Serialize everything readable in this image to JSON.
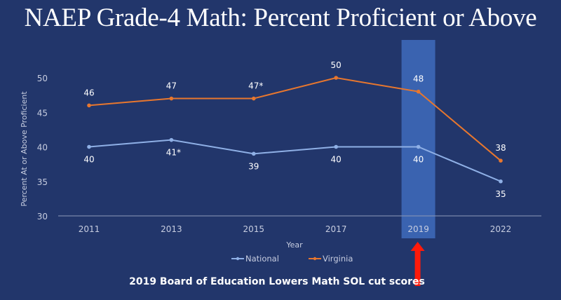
{
  "title": "NAEP Grade-4 Math: Percent Proficient or Above",
  "annotation": "2019 Board of Education Lowers Math SOL cut scores",
  "colors": {
    "background": "#22366b",
    "national": "#8fb0e6",
    "virginia": "#e8772e",
    "highlight": "#3a63b0",
    "arrow": "#ff1a0a"
  },
  "chart_data": {
    "type": "line",
    "title": "NAEP Grade-4 Math: Percent Proficient or Above",
    "xlabel": "Year",
    "ylabel": "Percent At or Above Proficient",
    "categories": [
      "2011",
      "2013",
      "2015",
      "2017",
      "2019",
      "2022"
    ],
    "ylim": [
      30,
      50
    ],
    "yticks": [
      "30",
      "35",
      "40",
      "45",
      "50"
    ],
    "grid": false,
    "legend": "bottom",
    "highlight_category": "2019",
    "series": [
      {
        "name": "National",
        "values": [
          40,
          41,
          39,
          40,
          40,
          35
        ],
        "labels": [
          "40",
          "41*",
          "39",
          "40",
          "40",
          "35"
        ],
        "label_position": "below"
      },
      {
        "name": "Virginia",
        "values": [
          46,
          47,
          47,
          50,
          48,
          38
        ],
        "labels": [
          "46",
          "47",
          "47*",
          "50",
          "48",
          "38"
        ],
        "label_position": "above"
      }
    ]
  }
}
